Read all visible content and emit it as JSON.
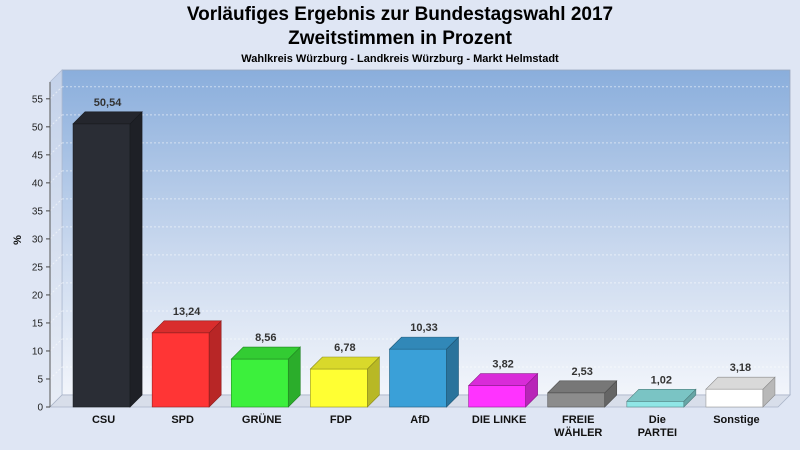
{
  "header": {
    "title": "Vorläufiges Ergebnis zur Bundestagswahl 2017",
    "subtitle": "Zweitstimmen in Prozent",
    "region": "Wahlkreis Würzburg - Landkreis Würzburg - Markt Helmstadt"
  },
  "chart_data": {
    "type": "bar",
    "title": "Vorläufiges Ergebnis zur Bundestagswahl 2017",
    "subtitle": "Zweitstimmen in Prozent",
    "ylabel": "%",
    "xlabel": "",
    "ylim": [
      0,
      58
    ],
    "yticks": [
      0,
      5,
      10,
      15,
      20,
      25,
      30,
      35,
      40,
      45,
      50,
      55
    ],
    "grid": true,
    "legend": "none",
    "categories": [
      "CSU",
      "SPD",
      "GRÜNE",
      "FDP",
      "AfD",
      "DIE LINKE",
      "FREIE WÄHLER",
      "Die PARTEI",
      "Sonstige"
    ],
    "category_lines": [
      [
        "CSU"
      ],
      [
        "SPD"
      ],
      [
        "GRÜNE"
      ],
      [
        "FDP"
      ],
      [
        "AfD"
      ],
      [
        "DIE LINKE"
      ],
      [
        "FREIE",
        "WÄHLER"
      ],
      [
        "Die",
        "PARTEI"
      ],
      [
        "Sonstige"
      ]
    ],
    "values": [
      50.54,
      13.24,
      8.56,
      6.78,
      10.33,
      3.82,
      2.53,
      1.02,
      3.18
    ],
    "value_labels": [
      "50,54",
      "13,24",
      "8,56",
      "6,78",
      "10,33",
      "3,82",
      "2,53",
      "1,02",
      "3,18"
    ],
    "colors": [
      "#2a2d35",
      "#ff3535",
      "#3cf03c",
      "#ffff33",
      "#3aa0d8",
      "#ff33ff",
      "#8c8c8c",
      "#8fe6e6",
      "#ffffff"
    ]
  }
}
